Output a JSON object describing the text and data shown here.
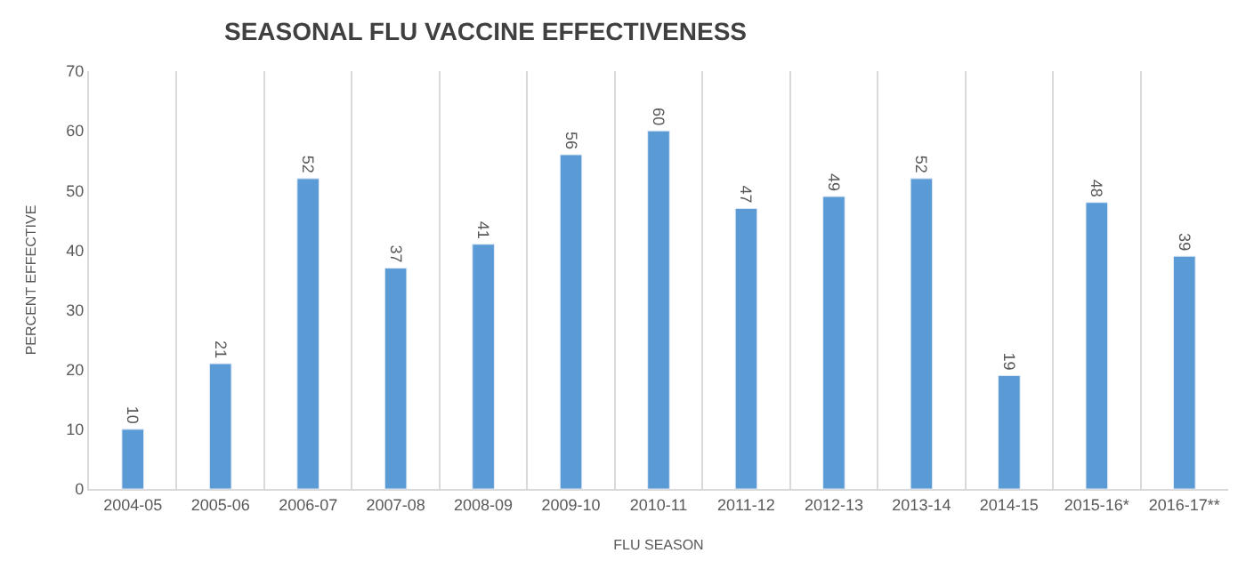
{
  "chart_data": {
    "type": "bar",
    "title": "SEASONAL FLU VACCINE EFFECTIVENESS",
    "xlabel": "FLU SEASON",
    "ylabel": "PERCENT EFFECTIVE",
    "categories": [
      "2004-05",
      "2005-06",
      "2006-07",
      "2007-08",
      "2008-09",
      "2009-10",
      "2010-11",
      "2011-12",
      "2012-13",
      "2013-14",
      "2014-15",
      "2015-16*",
      "2016-17**"
    ],
    "values": [
      10,
      21,
      52,
      37,
      41,
      56,
      60,
      47,
      49,
      52,
      19,
      48,
      39
    ],
    "color": "#5b9bd5",
    "ylim": [
      0,
      70
    ],
    "yticks": [
      0,
      10,
      20,
      30,
      40,
      50,
      60,
      70
    ],
    "grid": "x",
    "data_labels": true
  }
}
